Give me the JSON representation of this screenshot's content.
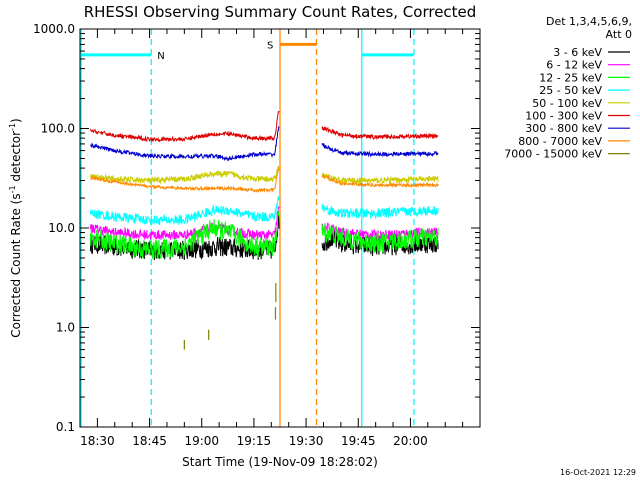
{
  "chart_data": {
    "type": "line",
    "title": "RHESSI Observing Summary Count Rates, Corrected",
    "xlabel": "Start Time (19-Nov-09 18:28:02)",
    "ylabel_main": "Corrected Count Rate (s",
    "ylabel_sup1": "-1",
    "ylabel_mid": " detector",
    "ylabel_sup2": "-1",
    "ylabel_end": ")",
    "y_scale": "log",
    "ylim": [
      0.1,
      1000
    ],
    "xlim_minutes": [
      -5,
      110
    ],
    "x_ticks": [
      {
        "minute": 0,
        "label": "18:30"
      },
      {
        "minute": 15,
        "label": "18:45"
      },
      {
        "minute": 30,
        "label": "19:00"
      },
      {
        "minute": 45,
        "label": "19:15"
      },
      {
        "minute": 60,
        "label": "19:30"
      },
      {
        "minute": 75,
        "label": "19:45"
      },
      {
        "minute": 90,
        "label": "20:00"
      }
    ],
    "y_ticks": [
      {
        "value": 0.1,
        "label": "0.1"
      },
      {
        "value": 1,
        "label": "1.0"
      },
      {
        "value": 10,
        "label": "10.0"
      },
      {
        "value": 100,
        "label": "100.0"
      },
      {
        "value": 1000,
        "label": "1000.0"
      }
    ],
    "legend_header_1": "Det 1,3,4,5,6,9,",
    "legend_header_2": "Att 0",
    "legend_placement": "right",
    "series": [
      {
        "name": "3 - 6 keV",
        "color": "#000000",
        "noise": 0.1,
        "points": [
          [
            -2,
            7
          ],
          [
            5,
            6.5
          ],
          [
            15,
            6
          ],
          [
            25,
            6
          ],
          [
            35,
            6.5
          ],
          [
            45,
            6
          ],
          [
            51,
            6
          ],
          [
            52,
            12
          ],
          [
            65,
            7
          ],
          [
            67,
            8
          ],
          [
            70,
            7
          ],
          [
            80,
            6.5
          ],
          [
            95,
            7
          ],
          [
            98,
            7
          ]
        ]
      },
      {
        "name": "6 - 12 keV",
        "color": "#ff00ff",
        "noise": 0.05,
        "points": [
          [
            -2,
            10
          ],
          [
            5,
            9
          ],
          [
            15,
            8.5
          ],
          [
            25,
            8.5
          ],
          [
            33,
            10
          ],
          [
            38,
            9.5
          ],
          [
            45,
            8.5
          ],
          [
            51,
            8.5
          ],
          [
            52,
            15
          ],
          [
            65,
            10
          ],
          [
            67,
            10
          ],
          [
            70,
            9
          ],
          [
            80,
            8.5
          ],
          [
            95,
            9
          ],
          [
            98,
            9
          ]
        ]
      },
      {
        "name": "12 - 25 keV",
        "color": "#00ff00",
        "noise": 0.1,
        "points": [
          [
            -2,
            8
          ],
          [
            5,
            7
          ],
          [
            15,
            6
          ],
          [
            25,
            6.5
          ],
          [
            33,
            10
          ],
          [
            38,
            9
          ],
          [
            45,
            6.5
          ],
          [
            51,
            6.5
          ],
          [
            52,
            14
          ],
          [
            65,
            9
          ],
          [
            67,
            9
          ],
          [
            70,
            8
          ],
          [
            80,
            7
          ],
          [
            95,
            8
          ],
          [
            98,
            8
          ]
        ]
      },
      {
        "name": "25 - 50 keV",
        "color": "#00ffff",
        "noise": 0.05,
        "points": [
          [
            -2,
            14
          ],
          [
            5,
            13
          ],
          [
            15,
            12
          ],
          [
            25,
            12
          ],
          [
            33,
            15
          ],
          [
            38,
            15
          ],
          [
            45,
            13
          ],
          [
            51,
            13
          ],
          [
            52,
            20
          ],
          [
            65,
            16
          ],
          [
            67,
            15
          ],
          [
            70,
            14
          ],
          [
            80,
            14
          ],
          [
            95,
            15
          ],
          [
            98,
            15
          ]
        ]
      },
      {
        "name": "50 - 100 keV",
        "color": "#cccc00",
        "noise": 0.03,
        "points": [
          [
            -2,
            33
          ],
          [
            5,
            31
          ],
          [
            15,
            30
          ],
          [
            25,
            31
          ],
          [
            33,
            35
          ],
          [
            38,
            35
          ],
          [
            45,
            31
          ],
          [
            51,
            31
          ],
          [
            52,
            40
          ],
          [
            65,
            34
          ],
          [
            67,
            32
          ],
          [
            70,
            30
          ],
          [
            80,
            30
          ],
          [
            95,
            31
          ],
          [
            98,
            31
          ]
        ]
      },
      {
        "name": "100 - 300 keV",
        "color": "#dd0000",
        "noise": 0.02,
        "points": [
          [
            -2,
            95
          ],
          [
            5,
            85
          ],
          [
            15,
            78
          ],
          [
            25,
            78
          ],
          [
            33,
            88
          ],
          [
            38,
            88
          ],
          [
            45,
            80
          ],
          [
            51,
            80
          ],
          [
            52,
            150
          ],
          [
            65,
            100
          ],
          [
            67,
            95
          ],
          [
            70,
            86
          ],
          [
            80,
            82
          ],
          [
            95,
            84
          ],
          [
            98,
            84
          ]
        ]
      },
      {
        "name": "300 - 800 keV",
        "color": "#0000cc",
        "noise": 0.02,
        "points": [
          [
            -2,
            68
          ],
          [
            5,
            60
          ],
          [
            15,
            53
          ],
          [
            25,
            52
          ],
          [
            33,
            53
          ],
          [
            38,
            50
          ],
          [
            45,
            55
          ],
          [
            51,
            55
          ],
          [
            52,
            100
          ],
          [
            65,
            68
          ],
          [
            67,
            62
          ],
          [
            70,
            57
          ],
          [
            80,
            55
          ],
          [
            95,
            56
          ],
          [
            98,
            56
          ]
        ]
      },
      {
        "name": "800 - 7000 keV",
        "color": "#ff8800",
        "noise": 0.015,
        "points": [
          [
            -2,
            32
          ],
          [
            5,
            29
          ],
          [
            15,
            26
          ],
          [
            25,
            25
          ],
          [
            33,
            25
          ],
          [
            38,
            25
          ],
          [
            45,
            24
          ],
          [
            51,
            24
          ],
          [
            52,
            40
          ],
          [
            65,
            33
          ],
          [
            67,
            31
          ],
          [
            70,
            28
          ],
          [
            80,
            27
          ],
          [
            95,
            27
          ],
          [
            98,
            27
          ]
        ]
      },
      {
        "name": "7000 - 15000 keV",
        "color": "#808000",
        "noise": 0,
        "points": []
      }
    ],
    "segments": {
      "n_label": "N",
      "s_label": "S",
      "night_color": "#00ffff",
      "saa_color": "#ff8800",
      "night_1": [
        -5,
        15.5
      ],
      "saa": [
        52.5,
        63
      ],
      "night_2": [
        76,
        91
      ]
    }
  },
  "footer": {
    "timestamp": "16-Oct-2021 12:29"
  }
}
